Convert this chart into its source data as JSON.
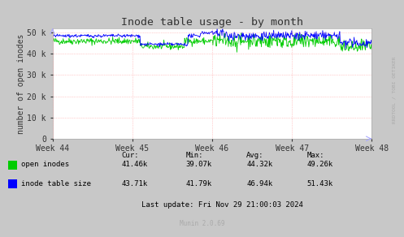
{
  "title": "Inode table usage - by month",
  "ylabel": "number of open inodes",
  "background_color": "#c8c8c8",
  "plot_background_color": "#ffffff",
  "grid_color_h": "#ff0000",
  "grid_color_v": "#ff0000",
  "x_ticks": [
    0,
    1,
    2,
    3,
    4
  ],
  "x_tick_labels": [
    "Week 44",
    "Week 45",
    "Week 46",
    "Week 47",
    "Week 48"
  ],
  "y_ticks": [
    0,
    10000,
    20000,
    30000,
    40000,
    50000
  ],
  "y_tick_labels": [
    "0",
    "10 k",
    "20 k",
    "30 k",
    "40 k",
    "50 k"
  ],
  "ylim": [
    0,
    52000
  ],
  "xlim": [
    0,
    4
  ],
  "open_inodes_color": "#00cc00",
  "inode_table_color": "#0000ff",
  "legend_labels": [
    "open inodes",
    "inode table size"
  ],
  "stats_header": [
    "Cur:",
    "Min:",
    "Avg:",
    "Max:"
  ],
  "stats_open": [
    "41.46k",
    "39.07k",
    "44.32k",
    "49.26k"
  ],
  "stats_inode": [
    "43.71k",
    "41.79k",
    "46.94k",
    "51.43k"
  ],
  "last_update": "Last update: Fri Nov 29 21:00:03 2024",
  "munin_version": "Munin 2.0.69",
  "watermark": "RRDTOOL / TOBI OETIKER",
  "title_color": "#333333",
  "axis_color": "#aaaaaa",
  "tick_color": "#333333",
  "text_color": "#000000"
}
